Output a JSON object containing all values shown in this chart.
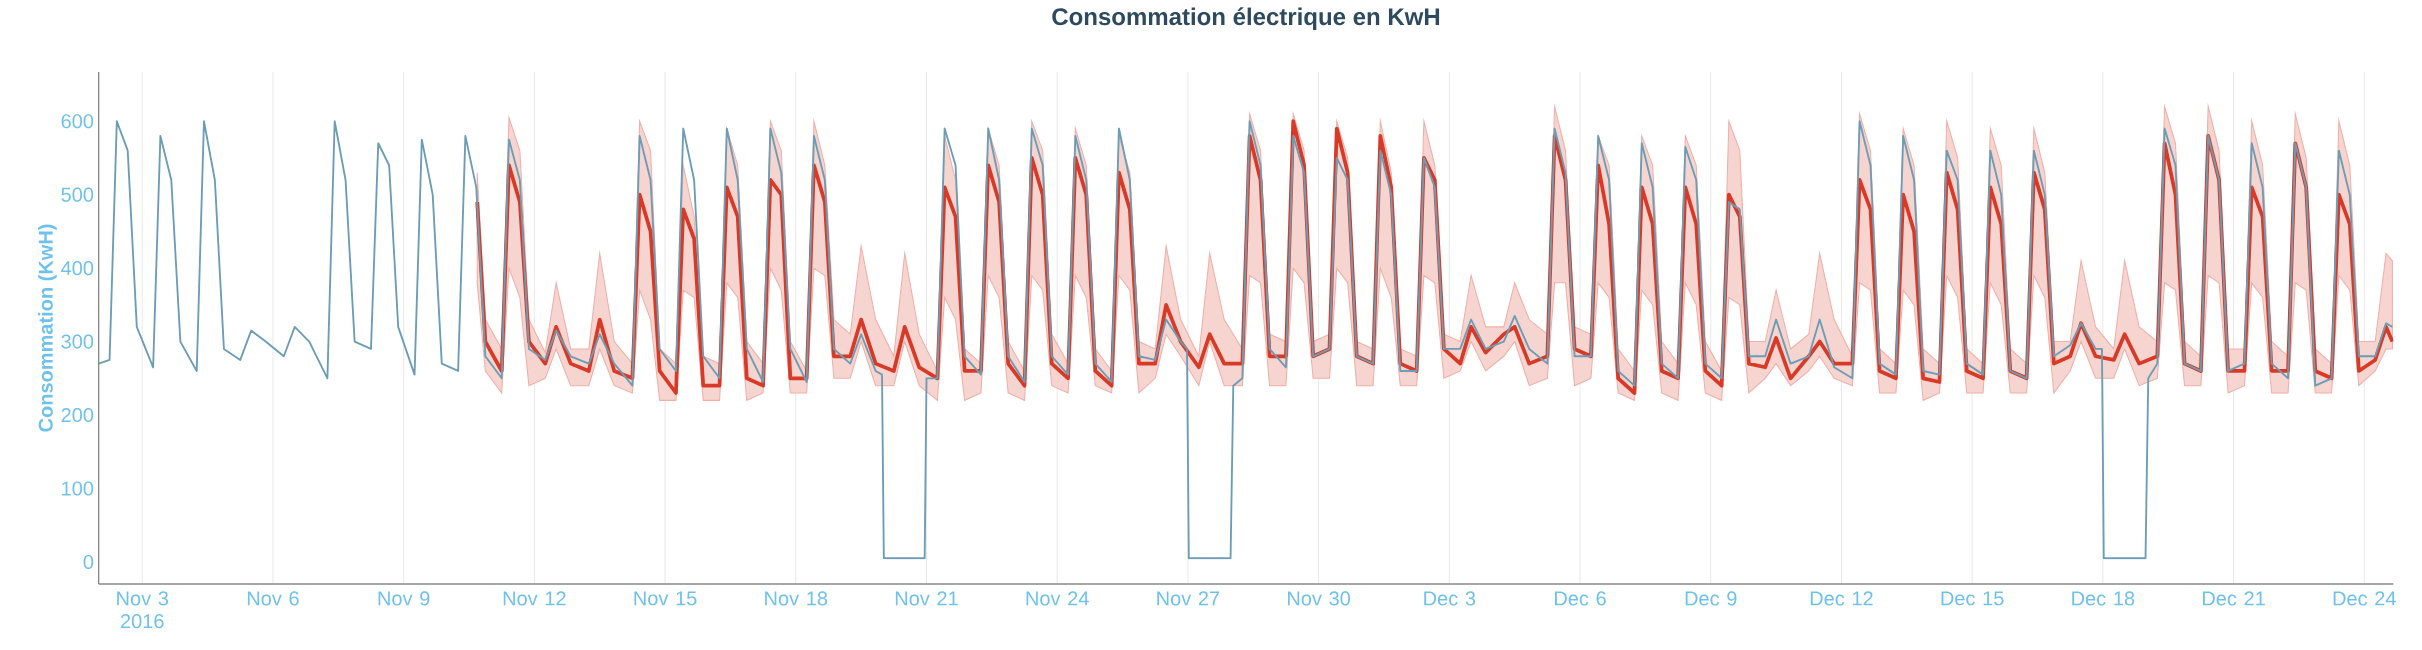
{
  "chart_data": {
    "type": "line",
    "title": "Consommation électrique en KwH",
    "ylabel": "Consommation (KwH)",
    "x": [
      "2016-11-02T00:00",
      "2016-11-02T06:00",
      "2016-11-02T10:00",
      "2016-11-02T16:00",
      "2016-11-02T21:00",
      "2016-11-03T06:00",
      "2016-11-03T10:00",
      "2016-11-03T16:00",
      "2016-11-03T21:00",
      "2016-11-04T06:00",
      "2016-11-04T10:00",
      "2016-11-04T16:00",
      "2016-11-04T21:00",
      "2016-11-05T06:00",
      "2016-11-05T12:00",
      "2016-11-05T20:00",
      "2016-11-06T06:00",
      "2016-11-06T12:00",
      "2016-11-06T20:00",
      "2016-11-07T06:00",
      "2016-11-07T10:00",
      "2016-11-07T16:00",
      "2016-11-07T21:00",
      "2016-11-08T06:00",
      "2016-11-08T10:00",
      "2016-11-08T16:00",
      "2016-11-08T21:00",
      "2016-11-09T06:00",
      "2016-11-09T10:00",
      "2016-11-09T16:00",
      "2016-11-09T21:00",
      "2016-11-10T06:00",
      "2016-11-10T10:00",
      "2016-11-10T16:00",
      "2016-11-10T21:00",
      "2016-11-11T06:00",
      "2016-11-11T10:00",
      "2016-11-11T16:00",
      "2016-11-11T21:00",
      "2016-11-12T06:00",
      "2016-11-12T12:00",
      "2016-11-12T20:00",
      "2016-11-13T06:00",
      "2016-11-13T12:00",
      "2016-11-13T20:00",
      "2016-11-14T06:00",
      "2016-11-14T10:00",
      "2016-11-14T16:00",
      "2016-11-14T21:00",
      "2016-11-15T06:00",
      "2016-11-15T10:00",
      "2016-11-15T16:00",
      "2016-11-15T21:00",
      "2016-11-16T06:00",
      "2016-11-16T10:00",
      "2016-11-16T16:00",
      "2016-11-16T21:00",
      "2016-11-17T06:00",
      "2016-11-17T10:00",
      "2016-11-17T16:00",
      "2016-11-17T21:00",
      "2016-11-18T06:00",
      "2016-11-18T10:00",
      "2016-11-18T16:00",
      "2016-11-18T21:00",
      "2016-11-19T06:00",
      "2016-11-19T12:00",
      "2016-11-19T20:00",
      "2016-11-19T23:30",
      "2016-11-20T00:30",
      "2016-11-20T23:00",
      "2016-11-21T00:00",
      "2016-11-21T06:00",
      "2016-11-21T10:00",
      "2016-11-21T16:00",
      "2016-11-21T21:00",
      "2016-11-22T06:00",
      "2016-11-22T10:00",
      "2016-11-22T16:00",
      "2016-11-22T21:00",
      "2016-11-23T06:00",
      "2016-11-23T10:00",
      "2016-11-23T16:00",
      "2016-11-23T21:00",
      "2016-11-24T06:00",
      "2016-11-24T10:00",
      "2016-11-24T16:00",
      "2016-11-24T21:00",
      "2016-11-25T06:00",
      "2016-11-25T10:00",
      "2016-11-25T16:00",
      "2016-11-25T21:00",
      "2016-11-26T06:00",
      "2016-11-26T12:00",
      "2016-11-26T20:00",
      "2016-11-26T23:30",
      "2016-11-27T00:30",
      "2016-11-27T23:30",
      "2016-11-28T01:00",
      "2016-11-28T06:00",
      "2016-11-28T10:00",
      "2016-11-28T16:00",
      "2016-11-28T21:00",
      "2016-11-29T06:00",
      "2016-11-29T10:00",
      "2016-11-29T16:00",
      "2016-11-29T21:00",
      "2016-11-30T06:00",
      "2016-11-30T10:00",
      "2016-11-30T16:00",
      "2016-11-30T21:00",
      "2016-12-01T06:00",
      "2016-12-01T10:00",
      "2016-12-01T16:00",
      "2016-12-01T21:00",
      "2016-12-02T06:00",
      "2016-12-02T10:00",
      "2016-12-02T16:00",
      "2016-12-02T21:00",
      "2016-12-03T06:00",
      "2016-12-03T12:00",
      "2016-12-03T20:00",
      "2016-12-04T06:00",
      "2016-12-04T12:00",
      "2016-12-04T20:00",
      "2016-12-05T06:00",
      "2016-12-05T10:00",
      "2016-12-05T16:00",
      "2016-12-05T21:00",
      "2016-12-06T06:00",
      "2016-12-06T10:00",
      "2016-12-06T16:00",
      "2016-12-06T21:00",
      "2016-12-07T06:00",
      "2016-12-07T10:00",
      "2016-12-07T16:00",
      "2016-12-07T21:00",
      "2016-12-08T06:00",
      "2016-12-08T10:00",
      "2016-12-08T16:00",
      "2016-12-08T21:00",
      "2016-12-09T06:00",
      "2016-12-09T10:00",
      "2016-12-09T16:00",
      "2016-12-09T21:00",
      "2016-12-10T06:00",
      "2016-12-10T12:00",
      "2016-12-10T20:00",
      "2016-12-11T06:00",
      "2016-12-11T12:00",
      "2016-12-11T20:00",
      "2016-12-12T06:00",
      "2016-12-12T10:00",
      "2016-12-12T16:00",
      "2016-12-12T21:00",
      "2016-12-13T06:00",
      "2016-12-13T10:00",
      "2016-12-13T16:00",
      "2016-12-13T21:00",
      "2016-12-14T06:00",
      "2016-12-14T10:00",
      "2016-12-14T16:00",
      "2016-12-14T21:00",
      "2016-12-15T06:00",
      "2016-12-15T10:00",
      "2016-12-15T16:00",
      "2016-12-15T21:00",
      "2016-12-16T06:00",
      "2016-12-16T10:00",
      "2016-12-16T16:00",
      "2016-12-16T21:00",
      "2016-12-17T06:00",
      "2016-12-17T12:00",
      "2016-12-17T20:00",
      "2016-12-17T23:30",
      "2016-12-18T00:30",
      "2016-12-18T23:30",
      "2016-12-19T01:00",
      "2016-12-19T06:00",
      "2016-12-19T10:00",
      "2016-12-19T16:00",
      "2016-12-19T21:00",
      "2016-12-20T06:00",
      "2016-12-20T10:00",
      "2016-12-20T16:00",
      "2016-12-20T21:00",
      "2016-12-21T06:00",
      "2016-12-21T10:00",
      "2016-12-21T16:00",
      "2016-12-21T21:00",
      "2016-12-22T06:00",
      "2016-12-22T10:00",
      "2016-12-22T16:00",
      "2016-12-22T21:00",
      "2016-12-23T06:00",
      "2016-12-23T10:00",
      "2016-12-23T16:00",
      "2016-12-23T21:00",
      "2016-12-24T06:00",
      "2016-12-24T12:00",
      "2016-12-24T15:30"
    ],
    "series": [
      {
        "color": "#6c9db5",
        "values": [
          270,
          275,
          600,
          560,
          320,
          265,
          580,
          520,
          300,
          260,
          600,
          520,
          290,
          275,
          315,
          300,
          280,
          320,
          300,
          250,
          600,
          520,
          300,
          290,
          570,
          540,
          320,
          255,
          575,
          500,
          270,
          260,
          580,
          510,
          280,
          250,
          575,
          520,
          290,
          275,
          315,
          280,
          270,
          310,
          270,
          240,
          580,
          520,
          290,
          260,
          590,
          520,
          280,
          250,
          590,
          520,
          290,
          245,
          590,
          530,
          290,
          245,
          580,
          520,
          290,
          270,
          310,
          260,
          255,
          5,
          5,
          250,
          250,
          590,
          540,
          280,
          255,
          590,
          520,
          280,
          245,
          590,
          540,
          280,
          255,
          580,
          520,
          270,
          245,
          590,
          520,
          280,
          275,
          330,
          300,
          290,
          5,
          5,
          240,
          250,
          600,
          540,
          290,
          265,
          580,
          530,
          280,
          290,
          550,
          520,
          280,
          270,
          560,
          500,
          260,
          260,
          550,
          510,
          290,
          290,
          330,
          290,
          300,
          335,
          290,
          270,
          590,
          530,
          280,
          280,
          580,
          520,
          260,
          240,
          570,
          510,
          270,
          250,
          565,
          520,
          270,
          250,
          490,
          480,
          280,
          280,
          330,
          270,
          280,
          330,
          265,
          250,
          600,
          540,
          270,
          255,
          580,
          520,
          260,
          255,
          560,
          520,
          270,
          255,
          560,
          500,
          260,
          250,
          560,
          500,
          280,
          295,
          325,
          290,
          290,
          5,
          5,
          250,
          270,
          590,
          540,
          270,
          260,
          580,
          520,
          260,
          270,
          570,
          510,
          270,
          250,
          570,
          510,
          240,
          250,
          560,
          500,
          280,
          280,
          325,
          320
        ]
      },
      {
        "color": "#d83a27",
        "x": [
          "2016-11-10T16:30",
          "2016-11-10T21:00",
          "2016-11-11T06:00",
          "2016-11-11T10:00",
          "2016-11-11T16:00",
          "2016-11-11T21:00",
          "2016-11-12T06:00",
          "2016-11-12T12:00",
          "2016-11-12T20:00",
          "2016-11-13T06:00",
          "2016-11-13T12:00",
          "2016-11-13T20:00",
          "2016-11-14T06:00",
          "2016-11-14T10:00",
          "2016-11-14T16:00",
          "2016-11-14T21:00",
          "2016-11-15T06:00",
          "2016-11-15T10:00",
          "2016-11-15T16:00",
          "2016-11-15T21:00",
          "2016-11-16T06:00",
          "2016-11-16T10:00",
          "2016-11-16T16:00",
          "2016-11-16T21:00",
          "2016-11-17T06:00",
          "2016-11-17T10:00",
          "2016-11-17T16:00",
          "2016-11-17T21:00",
          "2016-11-18T06:00",
          "2016-11-18T10:00",
          "2016-11-18T16:00",
          "2016-11-18T21:00",
          "2016-11-19T06:00",
          "2016-11-19T12:00",
          "2016-11-19T20:00",
          "2016-11-20T06:00",
          "2016-11-20T12:00",
          "2016-11-20T20:00",
          "2016-11-21T06:00",
          "2016-11-21T10:00",
          "2016-11-21T16:00",
          "2016-11-21T21:00",
          "2016-11-22T06:00",
          "2016-11-22T10:00",
          "2016-11-22T16:00",
          "2016-11-22T21:00",
          "2016-11-23T06:00",
          "2016-11-23T10:00",
          "2016-11-23T16:00",
          "2016-11-23T21:00",
          "2016-11-24T06:00",
          "2016-11-24T10:00",
          "2016-11-24T16:00",
          "2016-11-24T21:00",
          "2016-11-25T06:00",
          "2016-11-25T10:00",
          "2016-11-25T16:00",
          "2016-11-25T21:00",
          "2016-11-26T06:00",
          "2016-11-26T12:00",
          "2016-11-26T20:00",
          "2016-11-27T06:00",
          "2016-11-27T12:00",
          "2016-11-27T20:00",
          "2016-11-28T06:00",
          "2016-11-28T10:00",
          "2016-11-28T16:00",
          "2016-11-28T21:00",
          "2016-11-29T06:00",
          "2016-11-29T10:00",
          "2016-11-29T16:00",
          "2016-11-29T21:00",
          "2016-11-30T06:00",
          "2016-11-30T10:00",
          "2016-11-30T16:00",
          "2016-11-30T21:00",
          "2016-12-01T06:00",
          "2016-12-01T10:00",
          "2016-12-01T16:00",
          "2016-12-01T21:00",
          "2016-12-02T06:00",
          "2016-12-02T10:00",
          "2016-12-02T16:00",
          "2016-12-02T21:00",
          "2016-12-03T06:00",
          "2016-12-03T12:00",
          "2016-12-03T20:00",
          "2016-12-04T06:00",
          "2016-12-04T12:00",
          "2016-12-04T20:00",
          "2016-12-05T06:00",
          "2016-12-05T10:00",
          "2016-12-05T16:00",
          "2016-12-05T21:00",
          "2016-12-06T06:00",
          "2016-12-06T10:00",
          "2016-12-06T16:00",
          "2016-12-06T21:00",
          "2016-12-07T06:00",
          "2016-12-07T10:00",
          "2016-12-07T16:00",
          "2016-12-07T21:00",
          "2016-12-08T06:00",
          "2016-12-08T10:00",
          "2016-12-08T16:00",
          "2016-12-08T21:00",
          "2016-12-09T06:00",
          "2016-12-09T10:00",
          "2016-12-09T16:00",
          "2016-12-09T21:00",
          "2016-12-10T06:00",
          "2016-12-10T12:00",
          "2016-12-10T20:00",
          "2016-12-11T06:00",
          "2016-12-11T12:00",
          "2016-12-11T20:00",
          "2016-12-12T06:00",
          "2016-12-12T10:00",
          "2016-12-12T16:00",
          "2016-12-12T21:00",
          "2016-12-13T06:00",
          "2016-12-13T10:00",
          "2016-12-13T16:00",
          "2016-12-13T21:00",
          "2016-12-14T06:00",
          "2016-12-14T10:00",
          "2016-12-14T16:00",
          "2016-12-14T21:00",
          "2016-12-15T06:00",
          "2016-12-15T10:00",
          "2016-12-15T16:00",
          "2016-12-15T21:00",
          "2016-12-16T06:00",
          "2016-12-16T10:00",
          "2016-12-16T16:00",
          "2016-12-16T21:00",
          "2016-12-17T06:00",
          "2016-12-17T12:00",
          "2016-12-17T20:00",
          "2016-12-18T06:00",
          "2016-12-18T12:00",
          "2016-12-18T20:00",
          "2016-12-19T06:00",
          "2016-12-19T10:00",
          "2016-12-19T16:00",
          "2016-12-19T21:00",
          "2016-12-20T06:00",
          "2016-12-20T10:00",
          "2016-12-20T16:00",
          "2016-12-20T21:00",
          "2016-12-21T06:00",
          "2016-12-21T10:00",
          "2016-12-21T16:00",
          "2016-12-21T21:00",
          "2016-12-22T06:00",
          "2016-12-22T10:00",
          "2016-12-22T16:00",
          "2016-12-22T21:00",
          "2016-12-23T06:00",
          "2016-12-23T10:00",
          "2016-12-23T16:00",
          "2016-12-23T21:00",
          "2016-12-24T06:00",
          "2016-12-24T12:00",
          "2016-12-24T15:30"
        ],
        "values": [
          490,
          300,
          260,
          540,
          490,
          300,
          270,
          320,
          270,
          260,
          330,
          260,
          250,
          500,
          450,
          260,
          230,
          480,
          440,
          240,
          240,
          510,
          470,
          250,
          240,
          520,
          500,
          250,
          250,
          540,
          490,
          280,
          280,
          330,
          270,
          260,
          320,
          265,
          250,
          510,
          470,
          260,
          260,
          540,
          490,
          270,
          240,
          550,
          500,
          270,
          250,
          550,
          500,
          260,
          240,
          530,
          480,
          270,
          270,
          350,
          300,
          265,
          310,
          270,
          270,
          580,
          520,
          280,
          280,
          600,
          540,
          280,
          290,
          590,
          530,
          280,
          270,
          580,
          510,
          270,
          260,
          550,
          520,
          290,
          270,
          320,
          285,
          310,
          320,
          270,
          280,
          580,
          520,
          290,
          280,
          540,
          460,
          250,
          230,
          510,
          460,
          260,
          250,
          510,
          460,
          260,
          240,
          500,
          470,
          270,
          265,
          305,
          250,
          280,
          300,
          270,
          270,
          520,
          480,
          260,
          250,
          500,
          450,
          250,
          245,
          530,
          480,
          260,
          250,
          510,
          460,
          260,
          250,
          530,
          480,
          270,
          280,
          325,
          280,
          275,
          310,
          270,
          280,
          570,
          500,
          270,
          260,
          580,
          520,
          260,
          260,
          510,
          470,
          260,
          260,
          570,
          510,
          260,
          250,
          500,
          460,
          260,
          275,
          320,
          300
        ],
        "lower": [
          380,
          260,
          230,
          400,
          360,
          240,
          250,
          290,
          240,
          240,
          290,
          240,
          230,
          370,
          330,
          220,
          220,
          370,
          360,
          220,
          220,
          380,
          360,
          220,
          230,
          400,
          370,
          230,
          230,
          400,
          390,
          250,
          250,
          300,
          240,
          240,
          300,
          240,
          220,
          360,
          330,
          220,
          230,
          390,
          360,
          230,
          220,
          390,
          370,
          240,
          230,
          390,
          360,
          240,
          230,
          390,
          370,
          230,
          250,
          310,
          280,
          240,
          300,
          240,
          240,
          390,
          380,
          240,
          240,
          400,
          380,
          250,
          250,
          400,
          380,
          240,
          240,
          400,
          360,
          240,
          240,
          390,
          380,
          250,
          260,
          300,
          260,
          280,
          300,
          240,
          250,
          380,
          380,
          240,
          250,
          380,
          360,
          230,
          220,
          370,
          350,
          230,
          220,
          380,
          350,
          230,
          220,
          360,
          350,
          230,
          250,
          270,
          240,
          260,
          280,
          250,
          240,
          380,
          370,
          230,
          230,
          370,
          350,
          220,
          230,
          390,
          360,
          230,
          230,
          380,
          350,
          230,
          230,
          390,
          360,
          230,
          260,
          300,
          250,
          250,
          290,
          240,
          250,
          380,
          370,
          240,
          240,
          390,
          380,
          230,
          240,
          380,
          360,
          230,
          230,
          380,
          370,
          230,
          230,
          390,
          370,
          240,
          260,
          290,
          290
        ],
        "upper": [
          530,
          330,
          290,
          605,
          560,
          330,
          285,
          380,
          290,
          290,
          420,
          300,
          270,
          600,
          560,
          290,
          270,
          540,
          470,
          280,
          270,
          590,
          540,
          300,
          270,
          600,
          560,
          300,
          260,
          600,
          540,
          330,
          310,
          430,
          330,
          280,
          420,
          310,
          260,
          580,
          520,
          290,
          270,
          590,
          540,
          300,
          260,
          600,
          560,
          310,
          270,
          590,
          540,
          290,
          260,
          580,
          530,
          300,
          290,
          430,
          330,
          280,
          420,
          330,
          290,
          610,
          560,
          310,
          300,
          610,
          560,
          300,
          310,
          600,
          550,
          300,
          290,
          600,
          530,
          290,
          280,
          600,
          540,
          310,
          300,
          390,
          320,
          320,
          380,
          330,
          310,
          620,
          560,
          320,
          310,
          580,
          540,
          290,
          260,
          580,
          540,
          300,
          270,
          580,
          540,
          300,
          260,
          600,
          560,
          300,
          300,
          370,
          290,
          310,
          420,
          330,
          280,
          610,
          560,
          290,
          270,
          590,
          540,
          290,
          270,
          600,
          550,
          290,
          270,
          590,
          540,
          290,
          270,
          590,
          530,
          300,
          300,
          410,
          320,
          290,
          410,
          320,
          300,
          620,
          570,
          300,
          280,
          620,
          560,
          290,
          290,
          600,
          540,
          300,
          280,
          610,
          550,
          290,
          270,
          600,
          540,
          300,
          300,
          420,
          410
        ]
      }
    ],
    "xlim": [
      "2016-11-02T00:00",
      "2016-12-24T16:00"
    ],
    "ylim": [
      -30,
      667
    ],
    "xticks": [
      {
        "value": "2016-11-03",
        "label": "Nov 3 2016"
      },
      {
        "value": "2016-11-06",
        "label": "Nov 6"
      },
      {
        "value": "2016-11-09",
        "label": "Nov 9"
      },
      {
        "value": "2016-11-12",
        "label": "Nov 12"
      },
      {
        "value": "2016-11-15",
        "label": "Nov 15"
      },
      {
        "value": "2016-11-18",
        "label": "Nov 18"
      },
      {
        "value": "2016-11-21",
        "label": "Nov 21"
      },
      {
        "value": "2016-11-24",
        "label": "Nov 24"
      },
      {
        "value": "2016-11-27",
        "label": "Nov 27"
      },
      {
        "value": "2016-11-30",
        "label": "Nov 30"
      },
      {
        "value": "2016-12-03",
        "label": "Dec 3"
      },
      {
        "value": "2016-12-06",
        "label": "Dec 6"
      },
      {
        "value": "2016-12-09",
        "label": "Dec 9"
      },
      {
        "value": "2016-12-12",
        "label": "Dec 12"
      },
      {
        "value": "2016-12-15",
        "label": "Dec 15"
      },
      {
        "value": "2016-12-18",
        "label": "Dec 18"
      },
      {
        "value": "2016-12-21",
        "label": "Dec 21"
      },
      {
        "value": "2016-12-24",
        "label": "Dec 24"
      }
    ],
    "yticks": [
      0,
      100,
      200,
      300,
      400,
      500,
      600
    ],
    "grid": "x"
  }
}
